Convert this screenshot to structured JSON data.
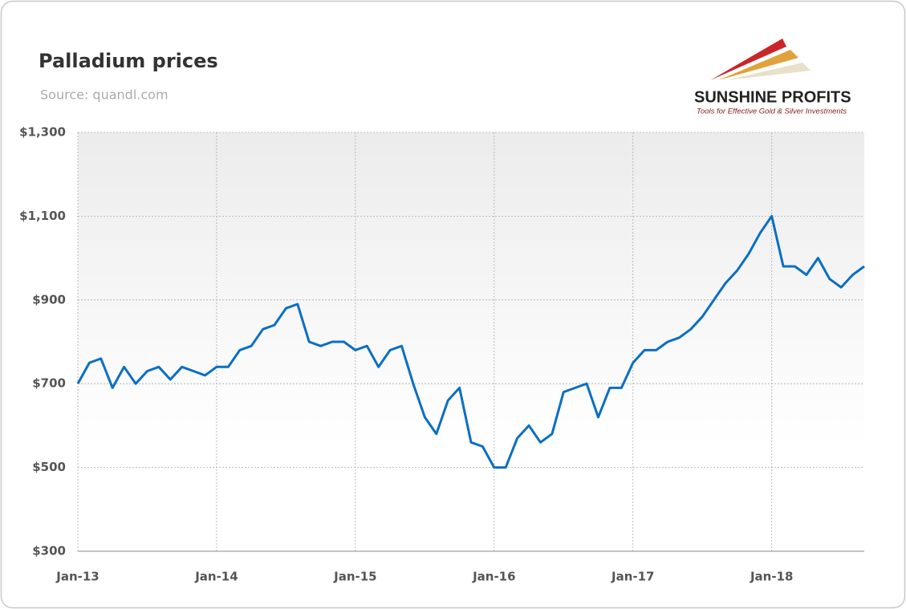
{
  "logo": {
    "name": "SUNSHINE PROFITS",
    "tagline": "Tools for Effective Gold & Silver Investments"
  },
  "chart_data": {
    "type": "line",
    "title": "Palladium prices",
    "subtitle": "Source: quandl.com",
    "x": [
      "2013-01",
      "2013-02",
      "2013-03",
      "2013-04",
      "2013-05",
      "2013-06",
      "2013-07",
      "2013-08",
      "2013-09",
      "2013-10",
      "2013-11",
      "2013-12",
      "2014-01",
      "2014-02",
      "2014-03",
      "2014-04",
      "2014-05",
      "2014-06",
      "2014-07",
      "2014-08",
      "2014-09",
      "2014-10",
      "2014-11",
      "2014-12",
      "2015-01",
      "2015-02",
      "2015-03",
      "2015-04",
      "2015-05",
      "2015-06",
      "2015-07",
      "2015-08",
      "2015-09",
      "2015-10",
      "2015-11",
      "2015-12",
      "2016-01",
      "2016-02",
      "2016-03",
      "2016-04",
      "2016-05",
      "2016-06",
      "2016-07",
      "2016-08",
      "2016-09",
      "2016-10",
      "2016-11",
      "2016-12",
      "2017-01",
      "2017-02",
      "2017-03",
      "2017-04",
      "2017-05",
      "2017-06",
      "2017-07",
      "2017-08",
      "2017-09",
      "2017-10",
      "2017-11",
      "2017-12",
      "2018-01",
      "2018-02",
      "2018-03",
      "2018-04",
      "2018-05",
      "2018-06",
      "2018-07",
      "2018-08",
      "2018-09"
    ],
    "series": [
      {
        "name": "Palladium",
        "color": "#0a6fc2",
        "values": [
          700,
          750,
          760,
          690,
          740,
          700,
          730,
          740,
          710,
          740,
          730,
          720,
          740,
          740,
          780,
          790,
          830,
          840,
          880,
          890,
          800,
          790,
          800,
          800,
          780,
          790,
          740,
          780,
          790,
          700,
          620,
          580,
          660,
          690,
          560,
          550,
          500,
          500,
          570,
          600,
          560,
          580,
          680,
          690,
          700,
          620,
          690,
          690,
          750,
          780,
          780,
          800,
          810,
          830,
          860,
          900,
          940,
          970,
          1010,
          1060,
          1100,
          980,
          980,
          960,
          1000,
          950,
          930,
          960,
          980
        ]
      }
    ],
    "xlim": [
      "2013-01",
      "2018-09"
    ],
    "xticks": [
      {
        "value": "2013-01",
        "label": "Jan-13"
      },
      {
        "value": "2014-01",
        "label": "Jan-14"
      },
      {
        "value": "2015-01",
        "label": "Jan-15"
      },
      {
        "value": "2016-01",
        "label": "Jan-16"
      },
      {
        "value": "2017-01",
        "label": "Jan-17"
      },
      {
        "value": "2018-01",
        "label": "Jan-18"
      }
    ],
    "ylim": [
      300,
      1300
    ],
    "yticks": [
      {
        "value": 300,
        "label": "$300"
      },
      {
        "value": 500,
        "label": "$500"
      },
      {
        "value": 700,
        "label": "$700"
      },
      {
        "value": 900,
        "label": "$900"
      },
      {
        "value": 1100,
        "label": "$1,100"
      },
      {
        "value": 1300,
        "label": "$1,300"
      }
    ],
    "grid": true
  }
}
